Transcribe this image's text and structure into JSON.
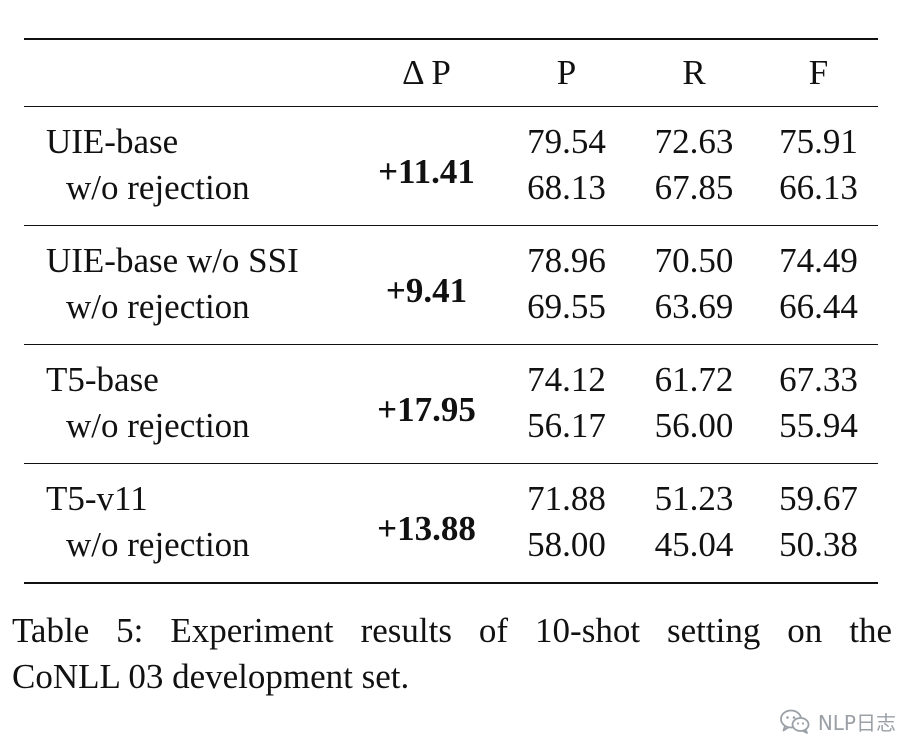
{
  "table": {
    "headers": [
      "",
      "Δ P",
      "P",
      "R",
      "F"
    ],
    "groups": [
      {
        "model": "UIE-base",
        "delta_p": "+11.41",
        "base": [
          "79.54",
          "72.63",
          "75.91"
        ],
        "sub_label": "w/o rejection",
        "sub": [
          "68.13",
          "67.85",
          "66.13"
        ]
      },
      {
        "model": "UIE-base w/o SSI",
        "delta_p": "+9.41",
        "base": [
          "78.96",
          "70.50",
          "74.49"
        ],
        "sub_label": "w/o rejection",
        "sub": [
          "69.55",
          "63.69",
          "66.44"
        ]
      },
      {
        "model": "T5-base",
        "delta_p": "+17.95",
        "base": [
          "74.12",
          "61.72",
          "67.33"
        ],
        "sub_label": "w/o rejection",
        "sub": [
          "56.17",
          "56.00",
          "55.94"
        ]
      },
      {
        "model": "T5-v11",
        "delta_p": "+13.88",
        "base": [
          "71.88",
          "51.23",
          "59.67"
        ],
        "sub_label": "w/o rejection",
        "sub": [
          "58.00",
          "45.04",
          "50.38"
        ]
      }
    ]
  },
  "caption": {
    "line1": "Table 5: Experiment results of 10-shot setting on the",
    "line2": "CoNLL 03 development set."
  },
  "watermark": {
    "icon": "wechat-icon",
    "text": "NLP日志"
  }
}
